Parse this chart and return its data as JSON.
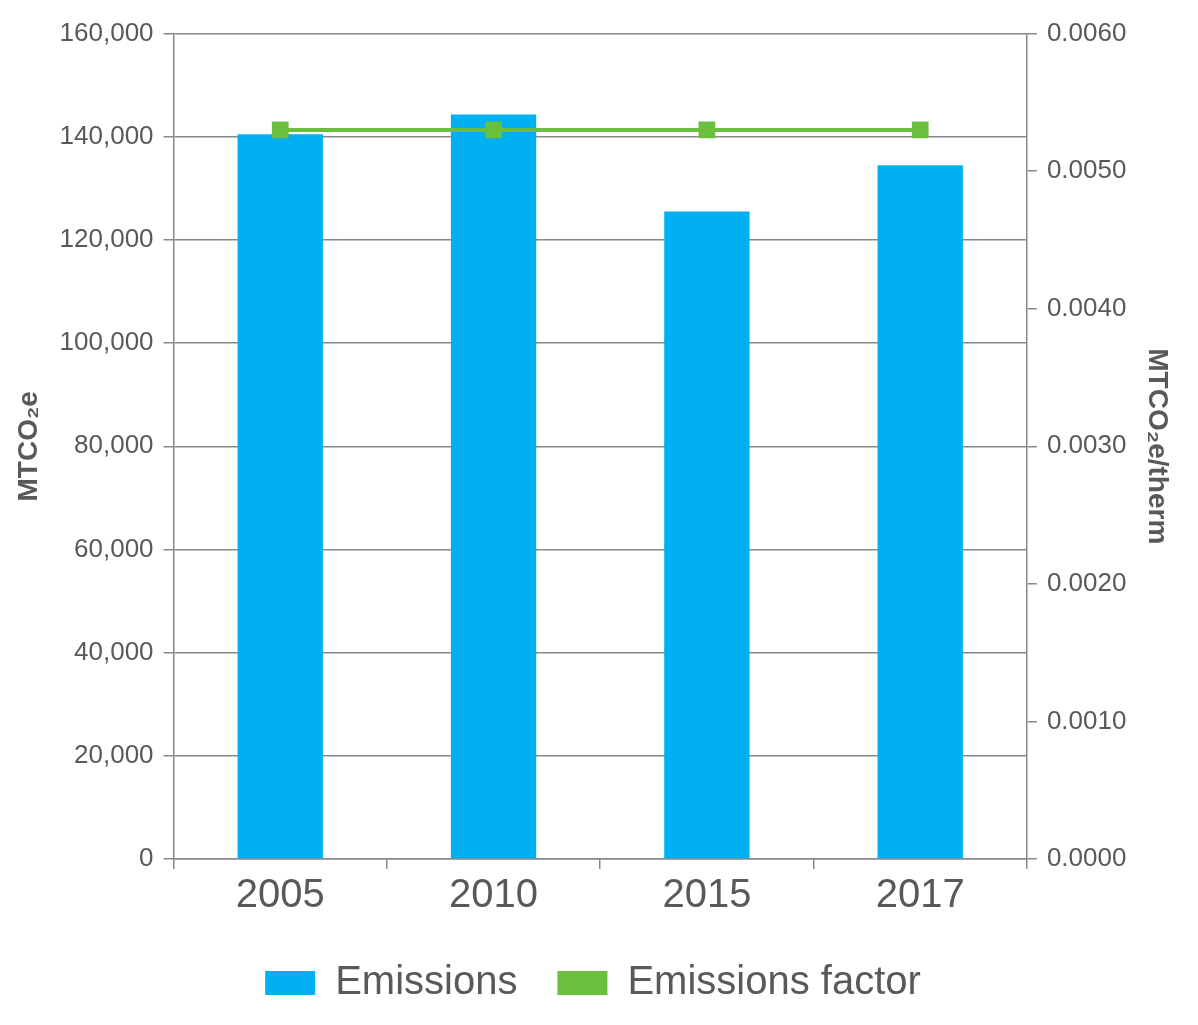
{
  "chart_data": {
    "type": "bar",
    "ylabel": "MTCO₂e",
    "y2label": "MTCO₂e/therm",
    "categories": [
      "2005",
      "2010",
      "2015",
      "2017"
    ],
    "series": [
      {
        "name": "Emissions",
        "color": "#00b0f0",
        "values": [
          140500,
          144300,
          125500,
          134500
        ]
      },
      {
        "name": "Emissions factor",
        "type": "line",
        "axis": "y2",
        "color": "#6abf3e",
        "marker": "square",
        "values": [
          0.0053,
          0.0053,
          0.0053,
          0.0053
        ]
      }
    ],
    "ylim": [
      0,
      160000
    ],
    "yticks": [
      {
        "value": 0,
        "label": "0"
      },
      {
        "value": 20000,
        "label": "20,000"
      },
      {
        "value": 40000,
        "label": "40,000"
      },
      {
        "value": 60000,
        "label": "60,000"
      },
      {
        "value": 80000,
        "label": "80,000"
      },
      {
        "value": 100000,
        "label": "100,000"
      },
      {
        "value": 120000,
        "label": "120,000"
      },
      {
        "value": 140000,
        "label": "140,000"
      },
      {
        "value": 160000,
        "label": "160,000"
      }
    ],
    "y2lim": [
      0,
      0.006
    ],
    "y2ticks": [
      {
        "value": 0,
        "label": "0.0000"
      },
      {
        "value": 0.001,
        "label": "0.0010"
      },
      {
        "value": 0.002,
        "label": "0.0020"
      },
      {
        "value": 0.003,
        "label": "0.0030"
      },
      {
        "value": 0.004,
        "label": "0.0040"
      },
      {
        "value": 0.005,
        "label": "0.0050"
      },
      {
        "value": 0.006,
        "label": "0.0060"
      }
    ],
    "grid": "y",
    "legend": "bottom"
  }
}
